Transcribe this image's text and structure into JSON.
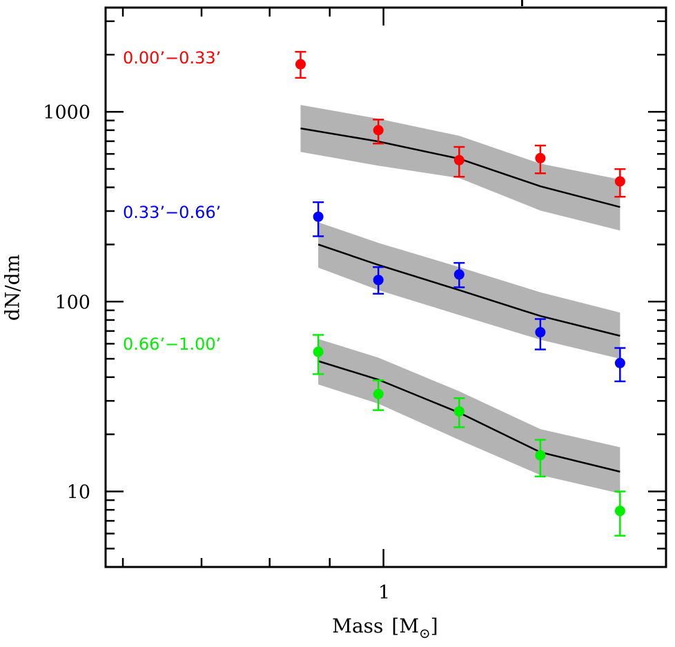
{
  "chart_data": {
    "type": "scatter",
    "title": "",
    "xlabel": "Mass [M⊙]",
    "xlabel_main": "Mass",
    "xlabel_unit_open": "[M",
    "xlabel_unit_sub": "⊙",
    "xlabel_unit_close": "]",
    "ylabel": "dN/dm",
    "xscale": "log",
    "yscale": "log",
    "xlim": [
      0.58,
      1.74
    ],
    "ylim": [
      4,
      3540
    ],
    "x_major_ticks": [
      {
        "value": 1,
        "label": "1"
      }
    ],
    "x_minor_ticks": [
      0.6,
      0.7,
      0.8,
      0.9,
      2
    ],
    "y_major_ticks": [
      {
        "value": 10,
        "label": "10"
      },
      {
        "value": 100,
        "label": "100"
      },
      {
        "value": 1000,
        "label": "1000"
      }
    ],
    "y_minor_ticks": [
      5,
      6,
      7,
      8,
      9,
      20,
      30,
      40,
      50,
      60,
      70,
      80,
      90,
      200,
      300,
      400,
      500,
      600,
      700,
      800,
      900,
      2000,
      3000
    ],
    "grid": false,
    "legend_placement": "left (text labels)",
    "series": [
      {
        "name": "0.00’−0.33’",
        "color": "#ff0000",
        "points": [
          {
            "x": 0.85,
            "y": 1780,
            "err_lo": 1510,
            "err_hi": 2070
          },
          {
            "x": 0.99,
            "y": 800,
            "err_lo": 680,
            "err_hi": 910
          },
          {
            "x": 1.16,
            "y": 556,
            "err_lo": 455,
            "err_hi": 653
          },
          {
            "x": 1.36,
            "y": 570,
            "err_lo": 474,
            "err_hi": 664
          },
          {
            "x": 1.59,
            "y": 430,
            "err_lo": 357,
            "err_hi": 499
          }
        ],
        "model": {
          "x": [
            0.85,
            0.99,
            1.16,
            1.36,
            1.59
          ],
          "y": [
            818,
            698,
            566,
            405,
            315
          ],
          "lower": [
            615,
            520,
            448,
            302,
            237
          ],
          "upper": [
            1087,
            920,
            747,
            533,
            440
          ]
        }
      },
      {
        "name": "0.33’−0.66’",
        "color": "#0000ff",
        "points": [
          {
            "x": 0.88,
            "y": 280,
            "err_lo": 221,
            "err_hi": 334
          },
          {
            "x": 0.99,
            "y": 130,
            "err_lo": 110,
            "err_hi": 152
          },
          {
            "x": 1.16,
            "y": 139,
            "err_lo": 119,
            "err_hi": 160
          },
          {
            "x": 1.36,
            "y": 69,
            "err_lo": 56,
            "err_hi": 81
          },
          {
            "x": 1.59,
            "y": 47.5,
            "err_lo": 38,
            "err_hi": 57
          }
        ],
        "model": {
          "x": [
            0.88,
            0.99,
            1.16,
            1.36,
            1.59
          ],
          "y": [
            200,
            156,
            115,
            84,
            66
          ],
          "lower": [
            151,
            115,
            85,
            63,
            50
          ],
          "upper": [
            262,
            204,
            152,
            112,
            87.5
          ]
        }
      },
      {
        "name": "0.66’−1.00’",
        "color": "#00ee00",
        "points": [
          {
            "x": 0.88,
            "y": 54.4,
            "err_lo": 41.5,
            "err_hi": 66.8
          },
          {
            "x": 0.99,
            "y": 32.6,
            "err_lo": 26.8,
            "err_hi": 38.5
          },
          {
            "x": 1.16,
            "y": 26.4,
            "err_lo": 21.8,
            "err_hi": 31
          },
          {
            "x": 1.36,
            "y": 15.5,
            "err_lo": 12.0,
            "err_hi": 18.7
          },
          {
            "x": 1.59,
            "y": 7.9,
            "err_lo": 5.85,
            "err_hi": 10
          }
        ],
        "model": {
          "x": [
            0.88,
            0.99,
            1.16,
            1.36,
            1.59
          ],
          "y": [
            48.6,
            38.8,
            26,
            16.1,
            12.7
          ],
          "lower": [
            36.6,
            29,
            18.7,
            12.2,
            9.75
          ],
          "upper": [
            63.6,
            50.7,
            33.7,
            21.3,
            17.1
          ]
        }
      }
    ],
    "band_color": "#b3b3b3",
    "model_line_color": "#000000"
  }
}
